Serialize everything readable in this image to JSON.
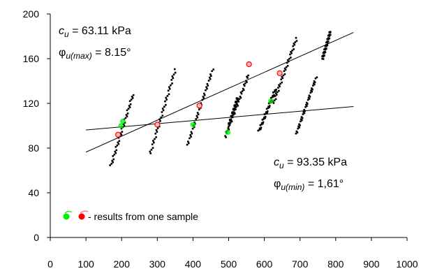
{
  "chart_data": {
    "type": "scatter",
    "title": "",
    "xlabel": "",
    "ylabel": "",
    "xlim": [
      0,
      1000
    ],
    "ylim": [
      0,
      200
    ],
    "x_ticks": [
      0,
      100,
      200,
      300,
      400,
      500,
      600,
      700,
      800,
      900,
      1000
    ],
    "y_ticks": [
      0,
      40,
      80,
      120,
      160,
      200
    ],
    "grid": false,
    "series": [
      {
        "color": "#000000",
        "marker": "square",
        "clusters": [
          {
            "x0": 170,
            "y0": 64,
            "x1": 232,
            "y1": 128
          },
          {
            "x0": 280,
            "y0": 75,
            "x1": 350,
            "y1": 150
          },
          {
            "x0": 385,
            "y0": 83,
            "x1": 455,
            "y1": 150
          },
          {
            "x0": 490,
            "y0": 90,
            "x1": 555,
            "y1": 145
          },
          {
            "x0": 500,
            "y0": 100,
            "x1": 525,
            "y1": 125
          },
          {
            "x0": 585,
            "y0": 95,
            "x1": 632,
            "y1": 133
          },
          {
            "x0": 625,
            "y0": 120,
            "x1": 690,
            "y1": 178
          },
          {
            "x0": 690,
            "y0": 93,
            "x1": 745,
            "y1": 143
          },
          {
            "x0": 763,
            "y0": 160,
            "x1": 785,
            "y1": 184
          }
        ]
      },
      {
        "color": "#00ee00",
        "marker": "circle",
        "points": [
          {
            "x": 198,
            "y": 100
          },
          {
            "x": 203,
            "y": 104
          },
          {
            "x": 400,
            "y": 101
          },
          {
            "x": 498,
            "y": 94
          },
          {
            "x": 618,
            "y": 122
          }
        ]
      },
      {
        "color": "#ff0000",
        "marker": "ring",
        "points": [
          {
            "x": 190,
            "y": 92
          },
          {
            "x": 300,
            "y": 101
          },
          {
            "x": 418,
            "y": 118
          },
          {
            "x": 557,
            "y": 155
          },
          {
            "x": 643,
            "y": 147
          }
        ]
      }
    ],
    "trend_lines": [
      {
        "x": [
          100,
          850
        ],
        "y": [
          76.4,
          183.5
        ]
      },
      {
        "x": [
          100,
          850
        ],
        "y": [
          96.2,
          117.2
        ]
      }
    ],
    "annotations": [
      {
        "symbol": "c",
        "subscript": "u",
        "text": " = 63.11 kPa"
      },
      {
        "symbol": "φ",
        "subscript": "u(max)",
        "text": " = 8.15°"
      },
      {
        "symbol": "c",
        "subscript": "u",
        "text": " = 93.35 kPa"
      },
      {
        "symbol": "φ",
        "subscript": "u(min)",
        "text": " = 1,61°"
      }
    ],
    "legend": {
      "position": "bottom-left",
      "text": " - results from one sample",
      "colors": [
        "#00ee00",
        "#ff0000"
      ]
    }
  }
}
